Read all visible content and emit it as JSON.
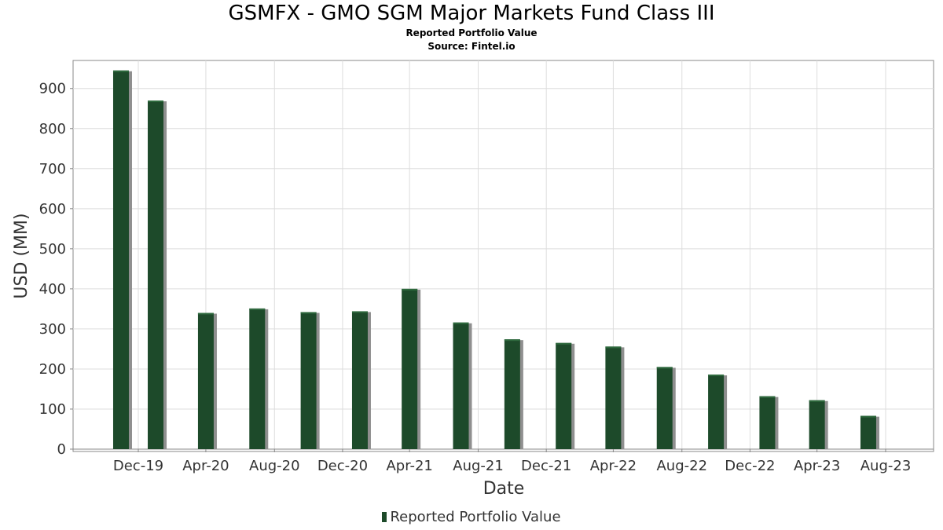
{
  "chart_data": {
    "type": "bar",
    "title": "GSMFX - GMO SGM Major Markets Fund Class III",
    "subtitle": "Reported Portfolio Value",
    "source": "Source: Fintel.io",
    "xlabel": "Date",
    "ylabel": "USD (MM)",
    "ylim": [
      0,
      970
    ],
    "yticks": [
      0,
      100,
      200,
      300,
      400,
      500,
      600,
      700,
      800,
      900
    ],
    "x_tick_labels": [
      "Dec-19",
      "Apr-20",
      "Aug-20",
      "Dec-20",
      "Apr-21",
      "Aug-21",
      "Dec-21",
      "Apr-22",
      "Aug-22",
      "Dec-22",
      "Apr-23",
      "Aug-23"
    ],
    "grid": true,
    "legend_position": "bottom",
    "series": [
      {
        "name": "Reported Portfolio Value",
        "color": "#1d4a2a",
        "points": [
          {
            "x": "2019-11-30",
            "y": 945
          },
          {
            "x": "2020-01-31",
            "y": 870
          },
          {
            "x": "2020-04-30",
            "y": 340
          },
          {
            "x": "2020-07-31",
            "y": 351
          },
          {
            "x": "2020-10-31",
            "y": 342
          },
          {
            "x": "2021-01-31",
            "y": 344
          },
          {
            "x": "2021-04-30",
            "y": 400
          },
          {
            "x": "2021-07-31",
            "y": 316
          },
          {
            "x": "2021-10-31",
            "y": 274
          },
          {
            "x": "2022-01-31",
            "y": 265
          },
          {
            "x": "2022-04-30",
            "y": 256
          },
          {
            "x": "2022-07-31",
            "y": 205
          },
          {
            "x": "2022-10-31",
            "y": 186
          },
          {
            "x": "2023-01-31",
            "y": 132
          },
          {
            "x": "2023-04-30",
            "y": 122
          },
          {
            "x": "2023-07-31",
            "y": 83
          }
        ]
      }
    ]
  }
}
